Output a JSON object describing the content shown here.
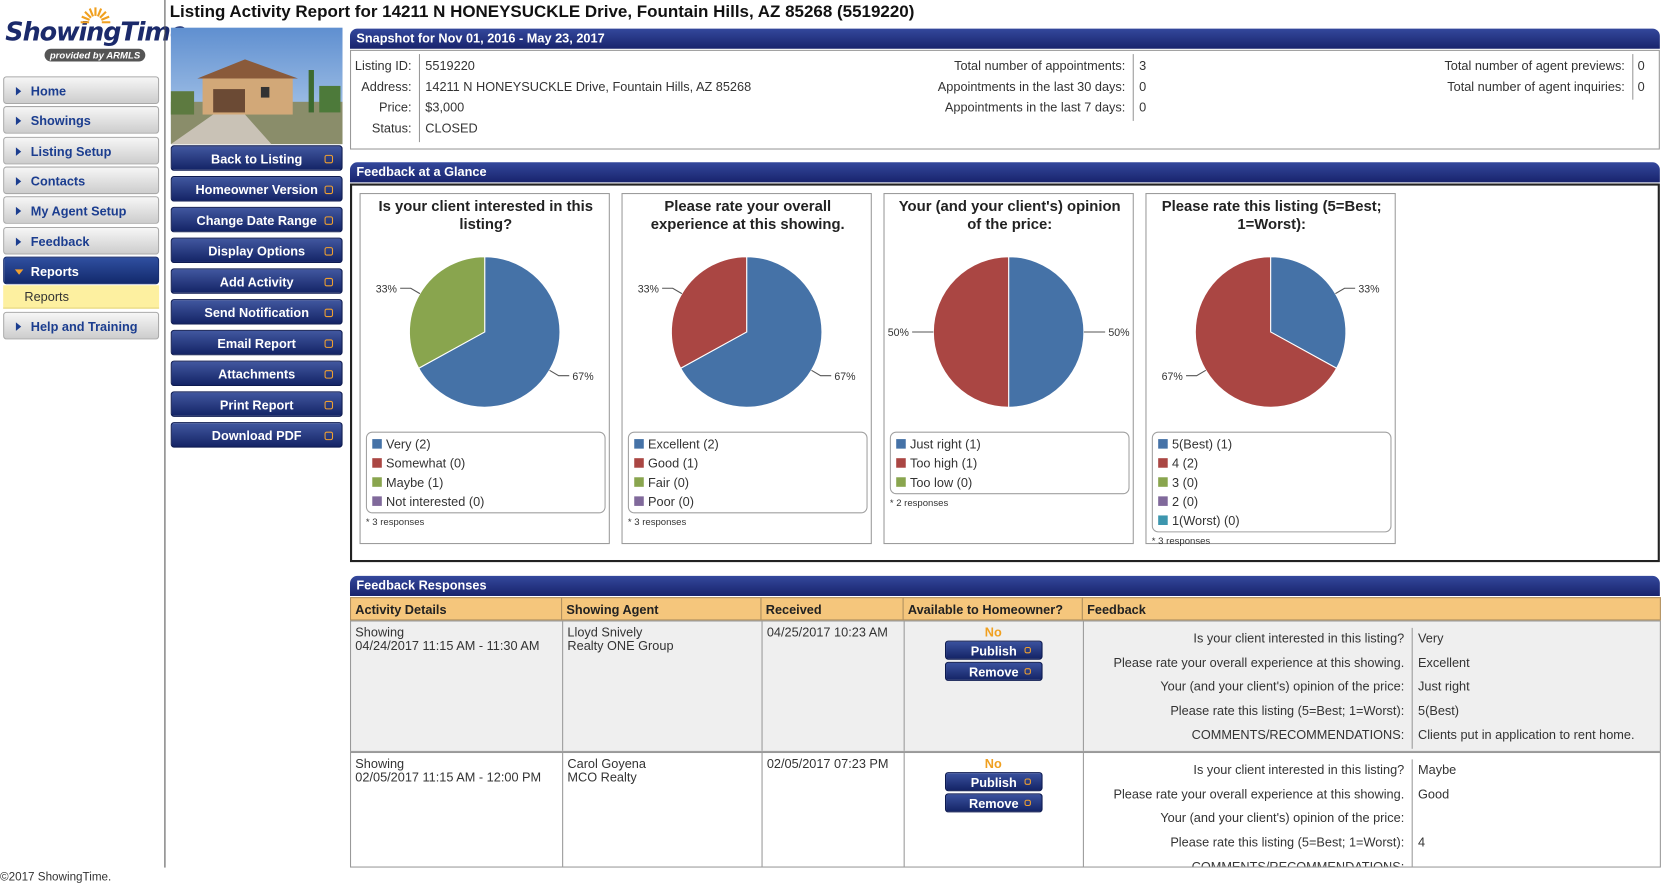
{
  "logo": {
    "name": "ShowingTime",
    "provider": "provided by ARMLS"
  },
  "nav": {
    "items": [
      {
        "label": "Home"
      },
      {
        "label": "Showings"
      },
      {
        "label": "Listing Setup"
      },
      {
        "label": "Contacts"
      },
      {
        "label": "My Agent Setup"
      },
      {
        "label": "Feedback"
      },
      {
        "label": "Reports",
        "active": true,
        "children": [
          "Reports"
        ]
      },
      {
        "label": "Help and Training"
      }
    ]
  },
  "footer": "©2017 ShowingTime.",
  "title": "Listing Activity Report for 14211 N HONEYSUCKLE Drive, Fountain Hills, AZ 85268 (5519220)",
  "actions": [
    "Back to Listing",
    "Homeowner Version",
    "Change Date Range",
    "Display Options",
    "Add Activity",
    "Send Notification",
    "Email Report",
    "Attachments",
    "Print Report",
    "Download PDF"
  ],
  "snapshot": {
    "title": "Snapshot for Nov 01, 2016 - May 23, 2017",
    "listing": [
      {
        "label": "Listing ID:",
        "value": "5519220"
      },
      {
        "label": "Address:",
        "value": "14211 N HONEYSUCKLE Drive, Fountain Hills, AZ 85268"
      },
      {
        "label": "Price:",
        "value": "$3,000"
      },
      {
        "label": "Status:",
        "value": "CLOSED"
      }
    ],
    "appointments": [
      {
        "label": "Total number of appointments:",
        "value": 3
      },
      {
        "label": "Appointments in the last 30 days:",
        "value": 0
      },
      {
        "label": "Appointments in the last 7 days:",
        "value": 0
      }
    ],
    "agent": [
      {
        "label": "Total number of agent previews:",
        "value": 0
      },
      {
        "label": "Total number of agent inquiries:",
        "value": 0
      }
    ]
  },
  "feedback_glance": {
    "title": "Feedback at a Glance",
    "charts": [
      {
        "type": "pie",
        "title": "Is your client interested in this listing?",
        "slices": [
          {
            "value": 67,
            "label": "67%",
            "color": "#4572A7"
          },
          {
            "value": 33,
            "label": "33%",
            "color": "#89A54E"
          }
        ],
        "legend": [
          {
            "label": "Very (2)",
            "color": "#4572A7"
          },
          {
            "label": "Somewhat (0)",
            "color": "#AA4643"
          },
          {
            "label": "Maybe (1)",
            "color": "#89A54E"
          },
          {
            "label": "Not interested (0)",
            "color": "#80699B"
          }
        ],
        "note": "* 3 responses"
      },
      {
        "type": "pie",
        "title": "Please rate your overall experience at this showing.",
        "slices": [
          {
            "value": 67,
            "label": "67%",
            "color": "#4572A7"
          },
          {
            "value": 33,
            "label": "33%",
            "color": "#AA4643"
          }
        ],
        "legend": [
          {
            "label": "Excellent (2)",
            "color": "#4572A7"
          },
          {
            "label": "Good (1)",
            "color": "#AA4643"
          },
          {
            "label": "Fair (0)",
            "color": "#89A54E"
          },
          {
            "label": "Poor (0)",
            "color": "#80699B"
          }
        ],
        "note": "* 3 responses"
      },
      {
        "type": "pie",
        "title": "Your (and your client's) opinion of the price:",
        "slices": [
          {
            "value": 50,
            "label": "50%",
            "color": "#4572A7"
          },
          {
            "value": 50,
            "label": "50%",
            "color": "#AA4643"
          }
        ],
        "legend": [
          {
            "label": "Just right (1)",
            "color": "#4572A7"
          },
          {
            "label": "Too high (1)",
            "color": "#AA4643"
          },
          {
            "label": "Too low (0)",
            "color": "#89A54E"
          }
        ],
        "note": "* 2 responses"
      },
      {
        "type": "pie",
        "title": "Please rate this listing (5=Best; 1=Worst):",
        "slices": [
          {
            "value": 33,
            "label": "33%",
            "color": "#4572A7"
          },
          {
            "value": 67,
            "label": "67%",
            "color": "#AA4643"
          }
        ],
        "legend": [
          {
            "label": "5(Best) (1)",
            "color": "#4572A7"
          },
          {
            "label": "4 (2)",
            "color": "#AA4643"
          },
          {
            "label": "3 (0)",
            "color": "#89A54E"
          },
          {
            "label": "2 (0)",
            "color": "#80699B"
          },
          {
            "label": "1(Worst) (0)",
            "color": "#3D96AE"
          }
        ],
        "note": "* 3 responses"
      }
    ]
  },
  "responses": {
    "title": "Feedback Responses",
    "columns": [
      "Activity Details",
      "Showing Agent",
      "Received",
      "Available to Homeowner?",
      "Feedback"
    ],
    "rows": [
      {
        "activity": "Showing",
        "time": "04/24/2017 11:15 AM - 11:30 AM",
        "agent": "Lloyd Snively",
        "office": "Realty ONE Group",
        "received": "04/25/2017 10:23 AM",
        "available": "No",
        "buttons": [
          "Publish",
          "Remove"
        ],
        "feedback": [
          {
            "q": "Is your client interested in this listing?",
            "a": "Very"
          },
          {
            "q": "Please rate your overall experience at this showing.",
            "a": "Excellent"
          },
          {
            "q": "Your (and your client's) opinion of the price:",
            "a": "Just right"
          },
          {
            "q": "Please rate this listing (5=Best; 1=Worst):",
            "a": "5(Best)"
          },
          {
            "q": "COMMENTS/RECOMMENDATIONS:",
            "a": "Clients put in application to rent home."
          }
        ]
      },
      {
        "activity": "Showing",
        "time": "02/05/2017 11:15 AM - 12:00 PM",
        "agent": "Carol Goyena",
        "office": "MCO Realty",
        "received": "02/05/2017 07:23 PM",
        "available": "No",
        "buttons": [
          "Publish",
          "Remove"
        ],
        "feedback": [
          {
            "q": "Is your client interested in this listing?",
            "a": "Maybe"
          },
          {
            "q": "Please rate your overall experience at this showing.",
            "a": "Good"
          },
          {
            "q": "Your (and your client's) opinion of the price:"
          },
          {
            "q": "Please rate this listing (5=Best; 1=Worst):",
            "a": "4"
          },
          {
            "q": "COMMENTS/RECOMMENDATIONS:"
          }
        ]
      }
    ]
  }
}
